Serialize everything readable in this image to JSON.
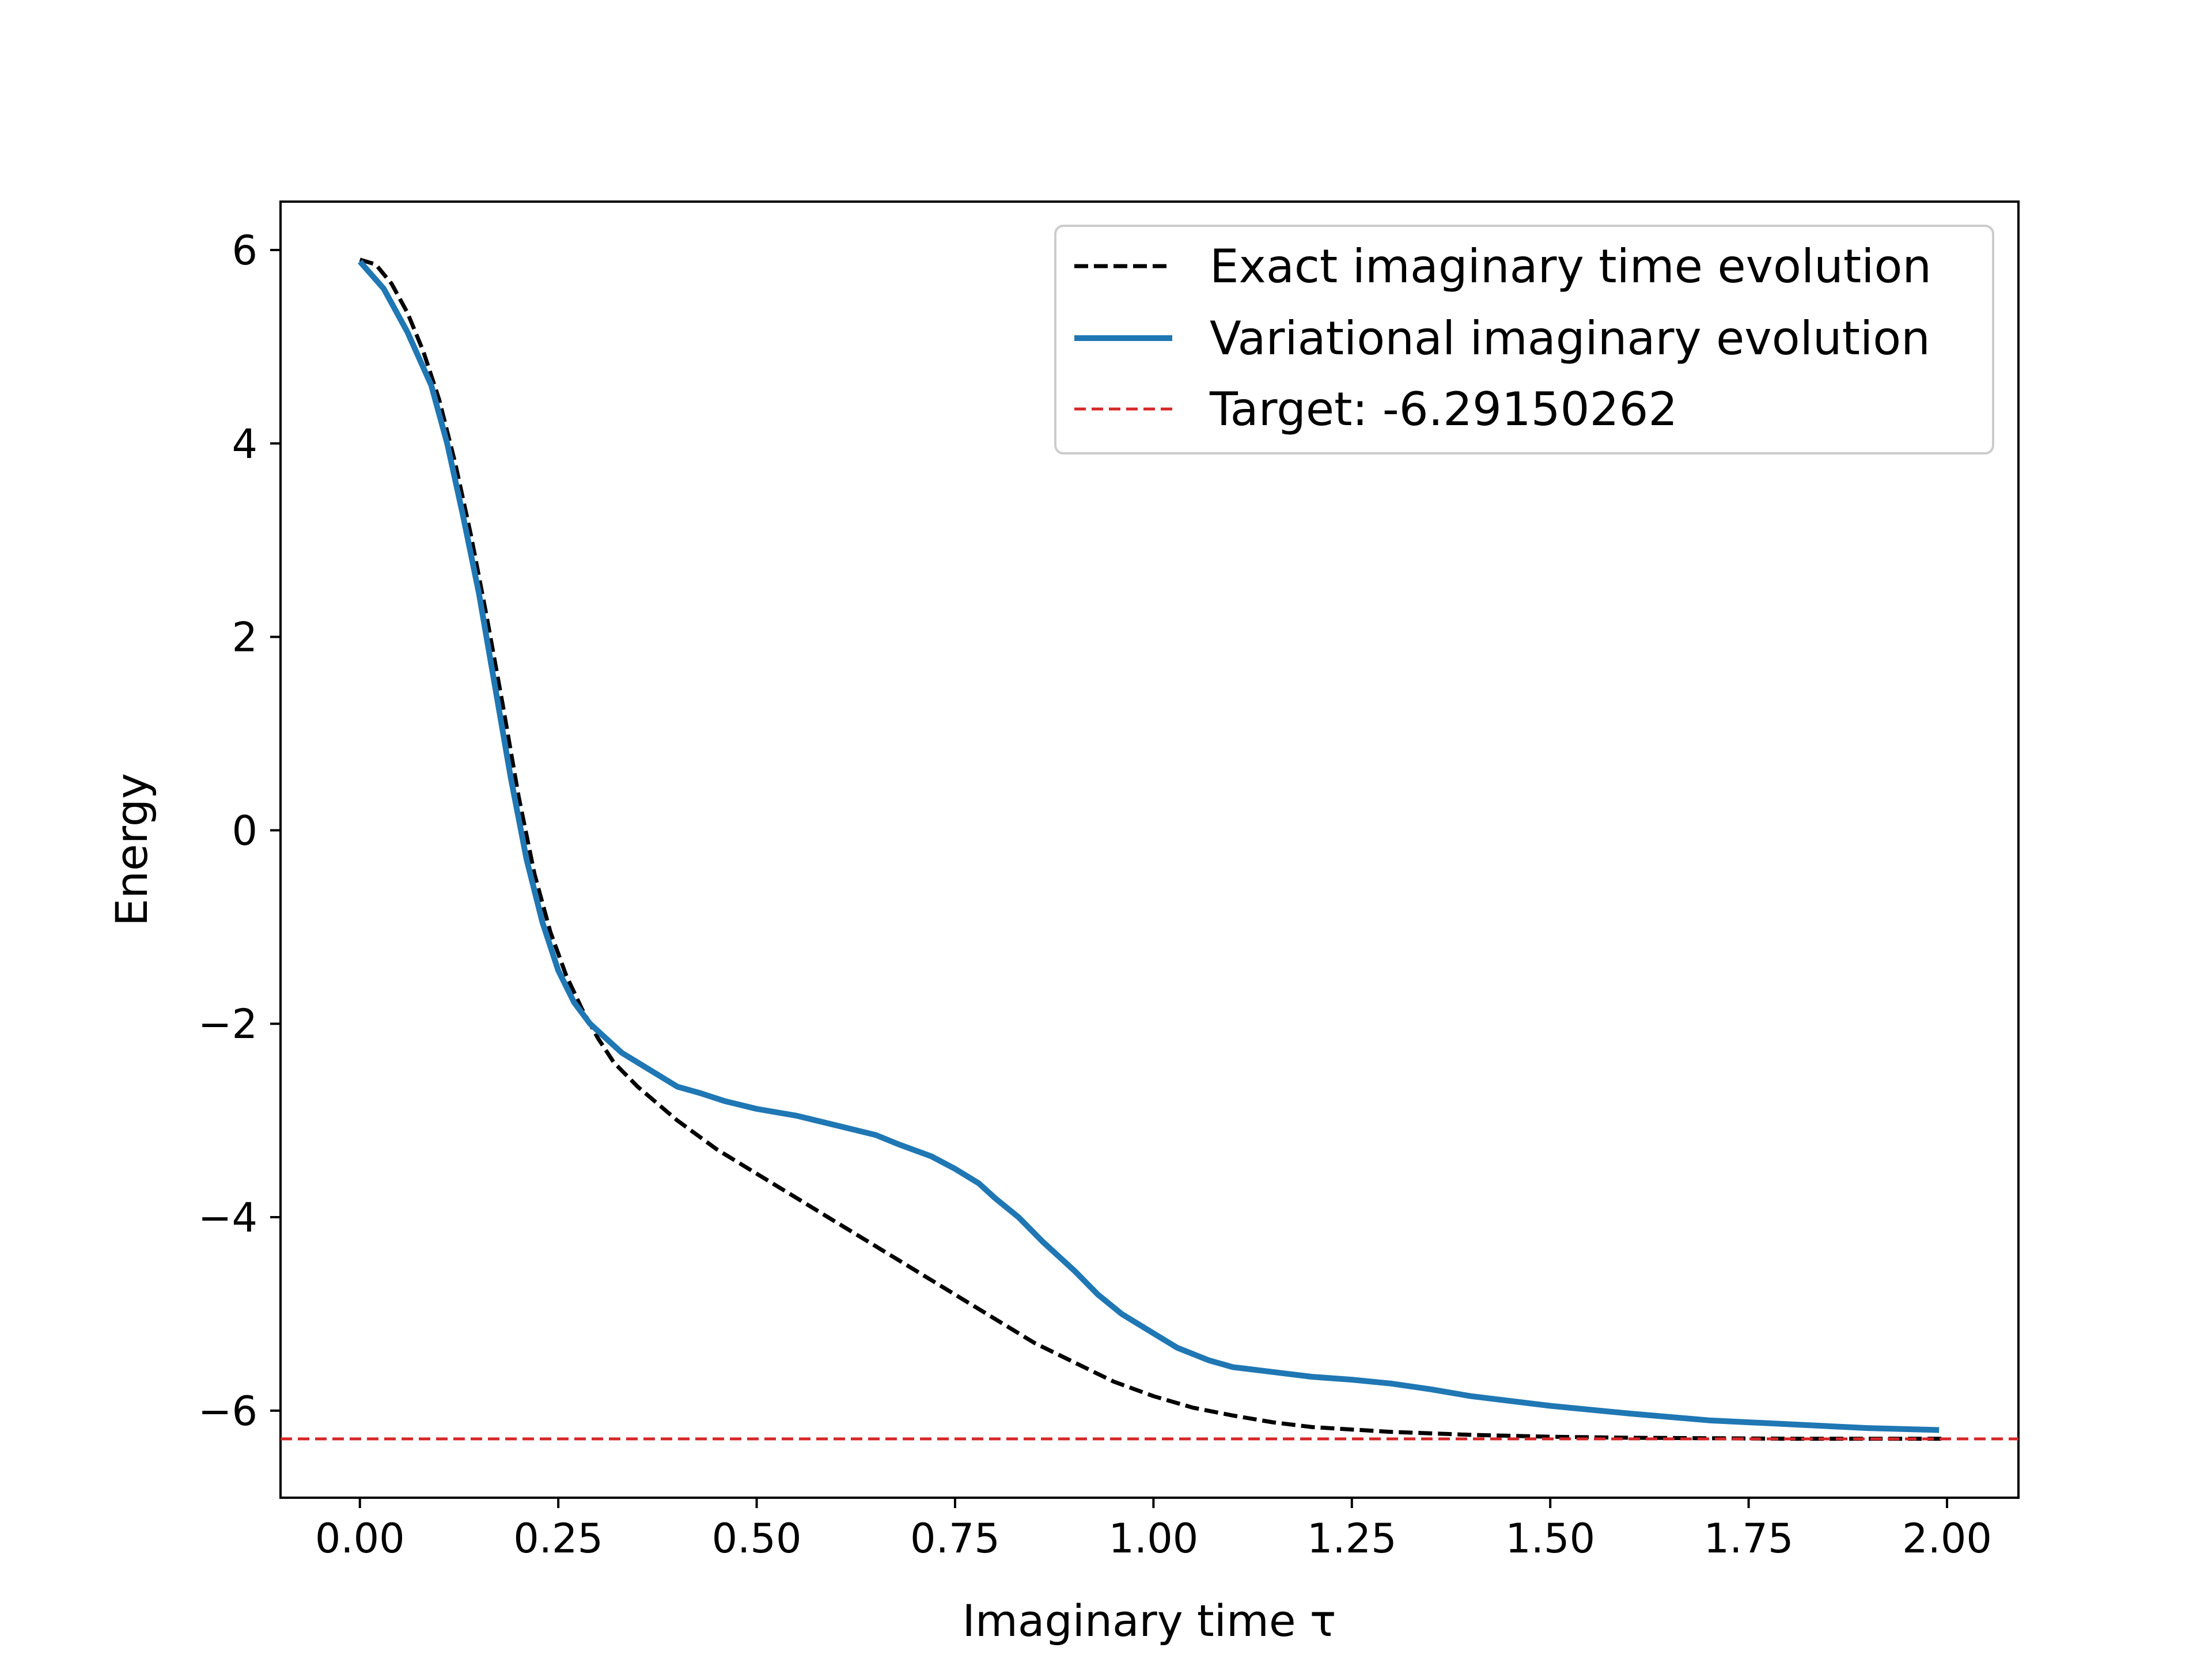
{
  "chart_data": {
    "type": "line",
    "title": "",
    "xlabel": "Imaginary time τ",
    "ylabel": "Energy",
    "xlim": [
      -0.1,
      2.09
    ],
    "ylim": [
      -6.9,
      6.5
    ],
    "x_ticks": [
      0.0,
      0.25,
      0.5,
      0.75,
      1.0,
      1.25,
      1.5,
      1.75,
      2.0
    ],
    "x_tick_labels": [
      "0.00",
      "0.25",
      "0.50",
      "0.75",
      "1.00",
      "1.25",
      "1.50",
      "1.75",
      "2.00"
    ],
    "y_ticks": [
      -6,
      -4,
      -2,
      0,
      2,
      4,
      6
    ],
    "y_tick_labels": [
      "−6",
      "−4",
      "−2",
      "0",
      "2",
      "4",
      "6"
    ],
    "grid": false,
    "legend_position": "top-right",
    "series": [
      {
        "name": "Exact imaginary time evolution",
        "style": "dashed",
        "color": "#000000",
        "x": [
          0.0,
          0.02,
          0.04,
          0.06,
          0.08,
          0.1,
          0.12,
          0.14,
          0.16,
          0.18,
          0.2,
          0.22,
          0.24,
          0.26,
          0.28,
          0.3,
          0.32,
          0.35,
          0.4,
          0.45,
          0.5,
          0.55,
          0.6,
          0.65,
          0.7,
          0.75,
          0.8,
          0.85,
          0.9,
          0.95,
          1.0,
          1.05,
          1.1,
          1.15,
          1.2,
          1.3,
          1.4,
          1.5,
          1.6,
          1.8,
          2.0
        ],
        "y": [
          5.9,
          5.85,
          5.65,
          5.35,
          4.95,
          4.45,
          3.8,
          3.05,
          2.2,
          1.3,
          0.35,
          -0.45,
          -1.05,
          -1.5,
          -1.85,
          -2.15,
          -2.4,
          -2.65,
          -3.0,
          -3.3,
          -3.55,
          -3.8,
          -4.05,
          -4.3,
          -4.55,
          -4.8,
          -5.05,
          -5.3,
          -5.5,
          -5.7,
          -5.85,
          -5.97,
          -6.05,
          -6.12,
          -6.17,
          -6.22,
          -6.25,
          -6.27,
          -6.28,
          -6.29,
          -6.29
        ]
      },
      {
        "name": "Variational imaginary evolution",
        "style": "solid",
        "color": "#1f77b4",
        "x": [
          0.0,
          0.03,
          0.06,
          0.09,
          0.11,
          0.13,
          0.15,
          0.17,
          0.19,
          0.21,
          0.23,
          0.25,
          0.27,
          0.29,
          0.31,
          0.33,
          0.36,
          0.38,
          0.4,
          0.43,
          0.46,
          0.5,
          0.55,
          0.6,
          0.65,
          0.68,
          0.72,
          0.75,
          0.78,
          0.8,
          0.83,
          0.86,
          0.9,
          0.93,
          0.96,
          1.0,
          1.03,
          1.07,
          1.1,
          1.15,
          1.2,
          1.25,
          1.3,
          1.35,
          1.4,
          1.5,
          1.6,
          1.7,
          1.8,
          1.9,
          1.99
        ],
        "y": [
          5.88,
          5.6,
          5.15,
          4.6,
          4.0,
          3.25,
          2.45,
          1.5,
          0.55,
          -0.3,
          -0.95,
          -1.45,
          -1.78,
          -2.0,
          -2.15,
          -2.3,
          -2.45,
          -2.55,
          -2.65,
          -2.72,
          -2.8,
          -2.88,
          -2.95,
          -3.05,
          -3.15,
          -3.25,
          -3.37,
          -3.5,
          -3.65,
          -3.8,
          -4.0,
          -4.25,
          -4.55,
          -4.8,
          -5.0,
          -5.2,
          -5.35,
          -5.48,
          -5.55,
          -5.6,
          -5.65,
          -5.68,
          -5.72,
          -5.78,
          -5.85,
          -5.95,
          -6.03,
          -6.1,
          -6.14,
          -6.18,
          -6.2
        ]
      },
      {
        "name": "Target: -6.29150262",
        "style": "dashed",
        "color": "#d62728",
        "kind": "hline",
        "y_value": -6.29150262
      }
    ]
  }
}
